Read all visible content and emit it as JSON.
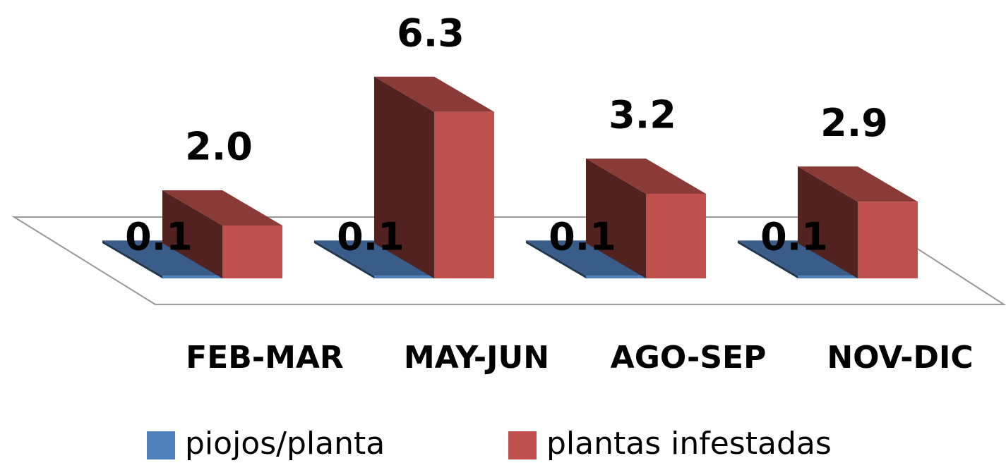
{
  "chart_data": {
    "type": "bar3d",
    "categories": [
      "FEB-MAR",
      "MAY-JUN",
      "AGO-SEP",
      "NOV-DIC"
    ],
    "series": [
      {
        "name": "piojos/planta",
        "color": "#4f81bd",
        "values": [
          0.1,
          0.1,
          0.1,
          0.1
        ]
      },
      {
        "name": "plantas infestadas",
        "color": "#c0504d",
        "values": [
          2.0,
          6.3,
          3.2,
          2.9
        ],
        "value_labels": [
          "2.0",
          "6.3",
          "3.2",
          "2.9"
        ]
      }
    ],
    "legend": "bottom"
  }
}
